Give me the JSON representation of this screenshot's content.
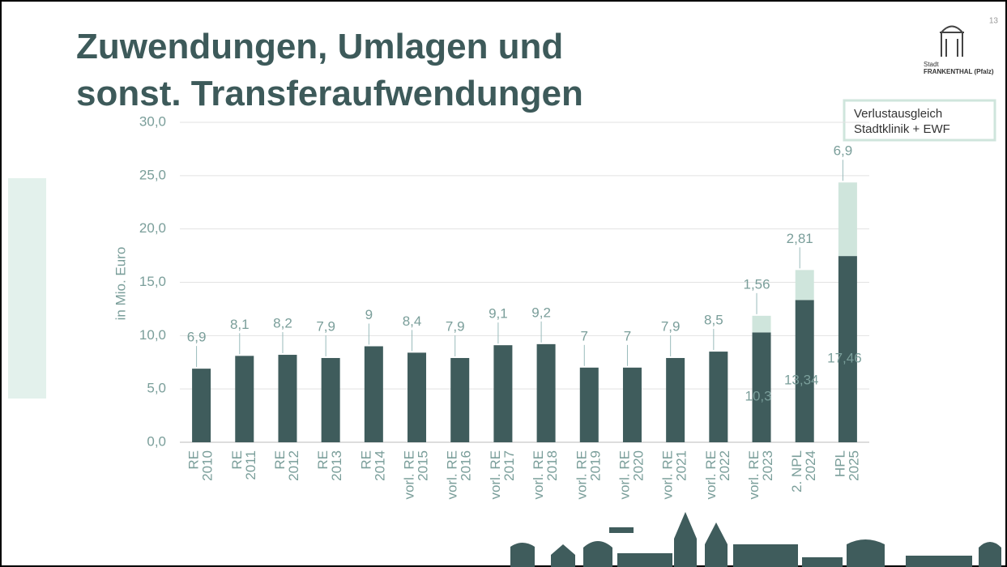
{
  "page_number": "13",
  "logo": {
    "line1": "Stadt",
    "line2": "FRANKENTHAL (Pfalz)"
  },
  "chart_data": {
    "type": "stacked-bar",
    "title": "Zuwendungen, Umlagen und sonst. Transferaufwendungen",
    "y_label": "in Mio. Euro",
    "categories": [
      "RE 2010",
      "RE 2011",
      "RE 2012",
      "RE 2013",
      "RE 2014",
      "vorl. RE 2015",
      "vorl. RE 2016",
      "vorl. RE 2017",
      "vorl. RE 2018",
      "vorl. RE 2019",
      "vorl. RE 2020",
      "vorl. RE 2021",
      "vorl. RE 2022",
      "vorl. RE 2023",
      "2. NPL 2024",
      "HPL 2025"
    ],
    "series": [
      {
        "color": "#3f5c5c",
        "values": [
          6.9,
          8.1,
          8.2,
          7.9,
          9,
          8.4,
          7.9,
          9.1,
          9.2,
          7,
          7,
          7.9,
          8.5,
          10.3,
          13.34,
          17.46
        ],
        "value_labels": [
          "6,9",
          "8,1",
          "8,2",
          "7,9",
          "9",
          "8,4",
          "7,9",
          "9,1",
          "9,2",
          "7",
          "7",
          "7,9",
          "8,5",
          "10,3",
          "13,34",
          "17,46"
        ]
      },
      {
        "name": "Verlustausgleich Stadtklinik + EWF",
        "color": "#cfe5dc",
        "values": [
          null,
          null,
          null,
          null,
          null,
          null,
          null,
          null,
          null,
          null,
          null,
          null,
          null,
          1.56,
          2.81,
          6.9
        ],
        "value_labels": [
          null,
          null,
          null,
          null,
          null,
          null,
          null,
          null,
          null,
          null,
          null,
          null,
          null,
          "1,56",
          "2,81",
          "6,9"
        ]
      }
    ],
    "ylim": [
      0,
      30
    ],
    "yticks": [
      {
        "value": 0,
        "label": "0,0"
      },
      {
        "value": 5,
        "label": "5,0"
      },
      {
        "value": 10,
        "label": "10,0"
      },
      {
        "value": 15,
        "label": "15,0"
      },
      {
        "value": 20,
        "label": "20,0"
      },
      {
        "value": 25,
        "label": "25,0"
      },
      {
        "value": 30,
        "label": "30,0"
      }
    ],
    "grid": true,
    "legend": "top-right"
  }
}
